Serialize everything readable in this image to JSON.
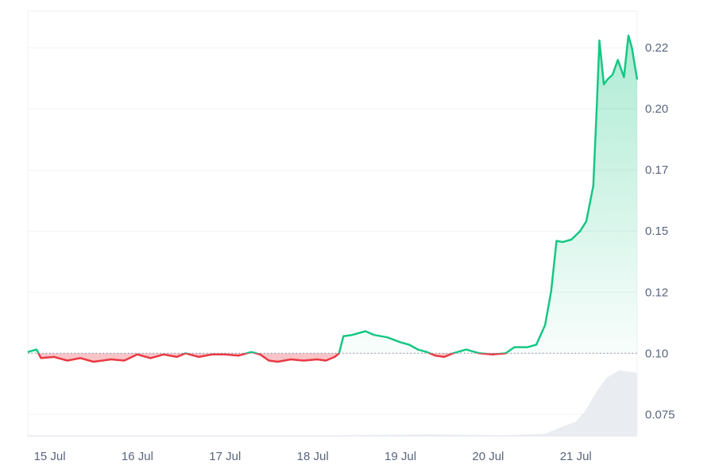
{
  "chart_data": {
    "type": "area",
    "title": "",
    "xlabel": "",
    "ylabel": "",
    "baseline": 0.1,
    "ylim": [
      0.066,
      0.24
    ],
    "grid": true,
    "legend": "none",
    "x_ticks": [
      "15 Jul",
      "16 Jul",
      "17 Jul",
      "18 Jul",
      "19 Jul",
      "20 Jul",
      "21 Jul"
    ],
    "y_ticks": [
      {
        "value": 0.075,
        "label": "0.075"
      },
      {
        "value": 0.1,
        "label": "0.10"
      },
      {
        "value": 0.125,
        "label": "0.12"
      },
      {
        "value": 0.15,
        "label": "0.15"
      },
      {
        "value": 0.175,
        "label": "0.17"
      },
      {
        "value": 0.2,
        "label": "0.20"
      },
      {
        "value": 0.225,
        "label": "0.22"
      }
    ],
    "x_range_days": [
      -0.25,
      6.7
    ],
    "series": [
      {
        "values": [
          [
            -0.25,
            0.1005
          ],
          [
            -0.15,
            0.1015
          ],
          [
            -0.1,
            0.098
          ],
          [
            0.05,
            0.0985
          ],
          [
            0.2,
            0.097
          ],
          [
            0.35,
            0.098
          ],
          [
            0.5,
            0.0965
          ],
          [
            0.7,
            0.0975
          ],
          [
            0.85,
            0.097
          ],
          [
            1.0,
            0.0995
          ],
          [
            1.15,
            0.098
          ],
          [
            1.3,
            0.0995
          ],
          [
            1.45,
            0.0985
          ],
          [
            1.55,
            0.1
          ],
          [
            1.7,
            0.0985
          ],
          [
            1.85,
            0.0995
          ],
          [
            2.0,
            0.0995
          ],
          [
            2.15,
            0.099
          ],
          [
            2.3,
            0.1005
          ],
          [
            2.4,
            0.0995
          ],
          [
            2.5,
            0.097
          ],
          [
            2.6,
            0.0965
          ],
          [
            2.75,
            0.0975
          ],
          [
            2.9,
            0.097
          ],
          [
            3.05,
            0.0975
          ],
          [
            3.15,
            0.097
          ],
          [
            3.25,
            0.0985
          ],
          [
            3.3,
            0.1
          ],
          [
            3.35,
            0.107
          ],
          [
            3.45,
            0.1075
          ],
          [
            3.6,
            0.109
          ],
          [
            3.7,
            0.1075
          ],
          [
            3.85,
            0.1065
          ],
          [
            4.0,
            0.1045
          ],
          [
            4.1,
            0.1035
          ],
          [
            4.2,
            0.1015
          ],
          [
            4.3,
            0.1005
          ],
          [
            4.4,
            0.099
          ],
          [
            4.5,
            0.0985
          ],
          [
            4.6,
            0.1
          ],
          [
            4.75,
            0.1015
          ],
          [
            4.9,
            0.1
          ],
          [
            5.05,
            0.0995
          ],
          [
            5.2,
            0.1
          ],
          [
            5.3,
            0.1025
          ],
          [
            5.45,
            0.1025
          ],
          [
            5.55,
            0.1035
          ],
          [
            5.65,
            0.1115
          ],
          [
            5.72,
            0.1255
          ],
          [
            5.78,
            0.146
          ],
          [
            5.85,
            0.1455
          ],
          [
            5.95,
            0.1465
          ],
          [
            6.05,
            0.15
          ],
          [
            6.12,
            0.154
          ],
          [
            6.2,
            0.1685
          ],
          [
            6.24,
            0.201
          ],
          [
            6.27,
            0.228
          ],
          [
            6.32,
            0.21
          ],
          [
            6.36,
            0.212
          ],
          [
            6.42,
            0.214
          ],
          [
            6.48,
            0.22
          ],
          [
            6.55,
            0.213
          ],
          [
            6.6,
            0.23
          ],
          [
            6.64,
            0.225
          ],
          [
            6.7,
            0.212
          ]
        ]
      }
    ],
    "volume": [
      [
        -0.25,
        0.0005
      ],
      [
        1.2,
        0.0005
      ],
      [
        2.2,
        0.0005
      ],
      [
        3.3,
        0.0005
      ],
      [
        4.3,
        0.0008
      ],
      [
        5.2,
        0.0005
      ],
      [
        5.65,
        0.001
      ],
      [
        5.85,
        0.004
      ],
      [
        6.0,
        0.006
      ],
      [
        6.1,
        0.01
      ],
      [
        6.25,
        0.019
      ],
      [
        6.35,
        0.024
      ],
      [
        6.5,
        0.027
      ],
      [
        6.7,
        0.026
      ]
    ],
    "colors": {
      "up": "#16c784",
      "down": "#ea3943",
      "up_fill": "#16c784",
      "down_fill": "#ea3943",
      "grid": "#eff2f5",
      "baseline": "#808a9d",
      "tick_text": "#58667e",
      "volume": "#e9ecf1"
    }
  }
}
